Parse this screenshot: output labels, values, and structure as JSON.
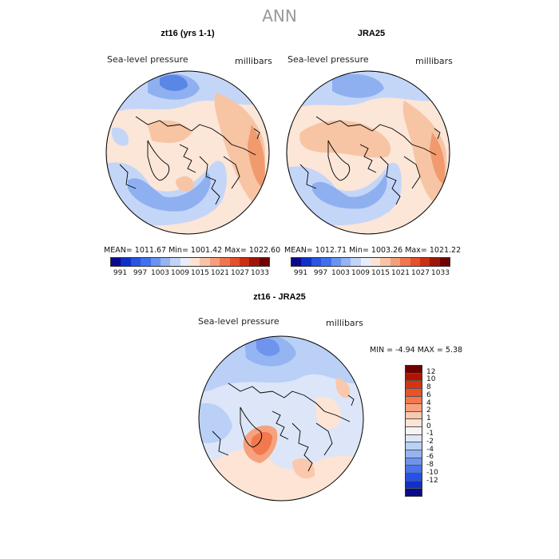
{
  "title": "ANN",
  "panels": [
    {
      "title": "zt16 (yrs 1-1)",
      "variable": "Sea-level pressure",
      "units": "millibars",
      "stats": "MEAN= 1011.67   Min= 1001.42   Max= 1022.60"
    },
    {
      "title": "JRA25",
      "variable": "Sea-level pressure",
      "units": "millibars",
      "stats": "MEAN= 1012.71   Min= 1003.26   Max= 1021.22"
    }
  ],
  "diff_panel": {
    "title": "zt16 - JRA25",
    "variable": "Sea-level pressure",
    "units": "millibars",
    "stats": "MIN =   -4.94  MAX =    5.38"
  },
  "abs_colorbar": {
    "colors": [
      "#0a0a8a",
      "#1030c8",
      "#2a55e0",
      "#3f70ee",
      "#6a94f0",
      "#94b4f4",
      "#c0d4f8",
      "#e6eefc",
      "#fde3d3",
      "#f9c4a6",
      "#f59e7a",
      "#ef7650",
      "#e6502c",
      "#cc3012",
      "#9e1608",
      "#6e0000"
    ],
    "labels": [
      "991",
      "997",
      "1003",
      "1009",
      "1015",
      "1021",
      "1027",
      "1033"
    ]
  },
  "diff_colorbar": {
    "colors": [
      "#6e0000",
      "#b01404",
      "#d83210",
      "#ec5226",
      "#f2784e",
      "#f6a27e",
      "#fac8ac",
      "#fde4d4",
      "#f6f4f2",
      "#dce6f8",
      "#bad0f6",
      "#94b4f2",
      "#6e94ee",
      "#4a74ea",
      "#2850e2",
      "#1030c8",
      "#0a0a8a"
    ],
    "labels": [
      "12",
      "10",
      "8",
      "6",
      "4",
      "2",
      "1",
      "0",
      "-1",
      "-2",
      "-4",
      "-6",
      "-8",
      "-10",
      "-12"
    ]
  },
  "map_colors": {
    "ocean_deep": "#5a86e6",
    "blue": "#8fb0f0",
    "light_blue": "#c4d6f8",
    "pale": "#fbe6d8",
    "peach": "#f7c4a4",
    "orange": "#f19a6e",
    "coast": "#000000"
  }
}
